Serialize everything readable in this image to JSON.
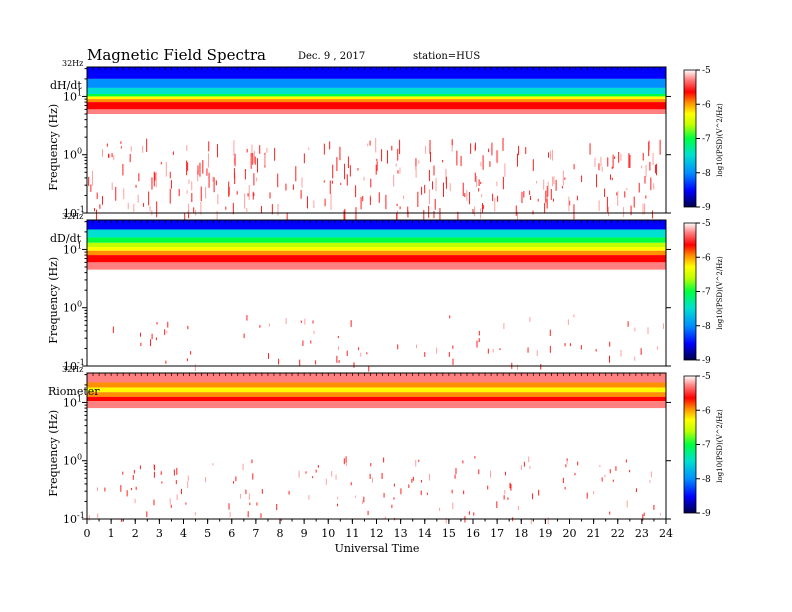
{
  "header": {
    "title": "Magnetic  Field  Spectra",
    "date": "Dec. 9 , 2017",
    "station": "station=HUS"
  },
  "x_axis": {
    "label": "Universal  Time",
    "ticks": [
      "0",
      "1",
      "2",
      "3",
      "4",
      "5",
      "6",
      "7",
      "8",
      "9",
      "10",
      "11",
      "12",
      "13",
      "14",
      "15",
      "16",
      "17",
      "18",
      "19",
      "20",
      "21",
      "22",
      "23",
      "24"
    ]
  },
  "colors": {
    "spectrum": [
      "#00004a",
      "#0000ff",
      "#0090ff",
      "#00e0d0",
      "#00ff40",
      "#c0ff00",
      "#ffff00",
      "#ff9000",
      "#ff0000",
      "#ff8080",
      "#ffffff"
    ]
  },
  "chart_data": [
    {
      "type": "heatmap",
      "panel_label": "dH/dt",
      "ylabel": "Frequency  (Hz)",
      "top_freq_label": "32Hz",
      "y_ticks": [
        {
          "base": "10",
          "exp": "1"
        },
        {
          "base": "10",
          "exp": "0"
        },
        {
          "base": "10",
          "exp": "-1"
        }
      ],
      "y_scale": "log",
      "ylim": [
        0.1,
        32
      ],
      "x_range": [
        0,
        24
      ],
      "colorbar": {
        "label": "log10(PSD)(V^2/Hz)",
        "label_display": "log10(PSD)(V^2/Hz)",
        "range": [
          -9,
          -5
        ],
        "ticks": [
          "-5",
          "-6",
          "-7",
          "-8",
          "-9"
        ]
      }
    },
    {
      "type": "heatmap",
      "panel_label": "dD/dt",
      "ylabel": "Frequency  (Hz)",
      "top_freq_label": "32Hz",
      "y_ticks": [
        {
          "base": "10",
          "exp": "1"
        },
        {
          "base": "10",
          "exp": "0"
        },
        {
          "base": "10",
          "exp": "-1"
        }
      ],
      "y_scale": "log",
      "ylim": [
        0.1,
        32
      ],
      "x_range": [
        0,
        24
      ],
      "colorbar": {
        "label": "log10(PSD)(V^2/Hz)",
        "label_display": "log10(PSD)(V^2/Hz)",
        "range": [
          -9,
          -5
        ],
        "ticks": [
          "-5",
          "-6",
          "-7",
          "-8",
          "-9"
        ]
      }
    },
    {
      "type": "heatmap",
      "panel_label": "Riometer",
      "ylabel": "Frequency  (Hz)",
      "top_freq_label": "32Hz",
      "y_ticks": [
        {
          "base": "10",
          "exp": "1"
        },
        {
          "base": "10",
          "exp": "0"
        },
        {
          "base": "10",
          "exp": "-1"
        }
      ],
      "y_scale": "log",
      "ylim": [
        0.1,
        32
      ],
      "x_range": [
        0,
        24
      ],
      "colorbar": {
        "label": "log10(PSD)(V^2/Hz)",
        "label_display": "log10(PSD)(V^2/Hz)",
        "range": [
          -9,
          -5
        ],
        "ticks": [
          "-5",
          "-6",
          "-7",
          "-8",
          "-9"
        ]
      }
    }
  ]
}
